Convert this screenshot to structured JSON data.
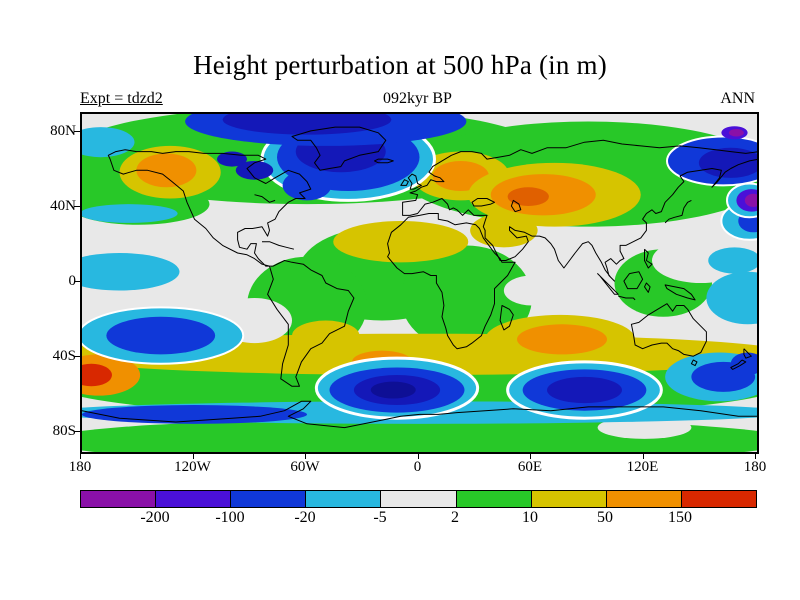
{
  "header": {
    "title": "Height perturbation at 500 hPa (in m)",
    "experiment": "Expt = tdzd2",
    "epoch": "092kyr BP",
    "season": "ANN"
  },
  "chart_data": {
    "type": "heatmap",
    "title": "Height perturbation at 500 hPa (in m)",
    "experiment": "tdzd2",
    "epoch": "092kyr BP",
    "season": "ANN",
    "units": "m",
    "variable": "Height perturbation at 500 hPa",
    "lon_range": [
      -180,
      180
    ],
    "lat_range": [
      -90,
      90
    ],
    "levels": [
      -200,
      -100,
      -20,
      -5,
      2,
      10,
      50,
      150
    ],
    "palette": [
      "#8a10a8",
      "#4a10d8",
      "#1038d8",
      "#28b8e0",
      "#e8e8e8",
      "#28c828",
      "#d6c400",
      "#f09000",
      "#d82800"
    ],
    "base_color": "#e8e8e8",
    "lat_ticks": [
      {
        "label": "80N",
        "value": 80
      },
      {
        "label": "40N",
        "value": 40
      },
      {
        "label": "0",
        "value": 0
      },
      {
        "label": "40S",
        "value": -40
      },
      {
        "label": "80S",
        "value": -80
      }
    ],
    "lon_ticks": [
      {
        "label": "180",
        "value": -180
      },
      {
        "label": "120W",
        "value": -120
      },
      {
        "label": "60W",
        "value": -60
      },
      {
        "label": "0",
        "value": 0
      },
      {
        "label": "60E",
        "value": 60
      },
      {
        "label": "120E",
        "value": 120
      },
      {
        "label": "180",
        "value": 180
      }
    ],
    "features": [
      {
        "lon": -60,
        "lat": 68,
        "rlon": 130,
        "rlat": 26,
        "color": "#28c828"
      },
      {
        "lon": 90,
        "lat": 58,
        "rlon": 100,
        "rlat": 28,
        "color": "#28c828"
      },
      {
        "lon": 0,
        "lat": -84,
        "rlon": 200,
        "rlat": 12,
        "color": "#28c828"
      },
      {
        "lon": 0,
        "lat": -52,
        "rlon": 200,
        "rlat": 20,
        "color": "#28c828"
      },
      {
        "lon": -20,
        "lat": 5,
        "rlon": 45,
        "rlat": 25,
        "color": "#28c828"
      },
      {
        "lon": 25,
        "lat": -8,
        "rlon": 35,
        "rlat": 28,
        "color": "#28c828"
      },
      {
        "lon": -60,
        "lat": -12,
        "rlon": 32,
        "rlat": 26,
        "color": "#28c828"
      },
      {
        "lon": 130,
        "lat": 0,
        "rlon": 26,
        "rlat": 18,
        "color": "#28c828"
      },
      {
        "lon": -150,
        "lat": 42,
        "rlon": 38,
        "rlat": 11,
        "color": "#28c828"
      },
      {
        "lon": -172,
        "lat": 62,
        "rlon": 25,
        "rlat": 18,
        "color": "#28c828"
      },
      {
        "lon": 0,
        "lat": -38,
        "rlon": 200,
        "rlat": 11,
        "color": "#d6c400"
      },
      {
        "lon": -120,
        "lat": 8,
        "rlon": 32,
        "rlat": 16,
        "color": "#e8e8e8"
      },
      {
        "lon": 150,
        "lat": 12,
        "rlon": 26,
        "rlat": 12,
        "color": "#e8e8e8"
      },
      {
        "lon": 165,
        "lat": 25,
        "rlon": 20,
        "rlat": 10,
        "color": "#e8e8e8"
      },
      {
        "lon": -88,
        "lat": -20,
        "rlon": 20,
        "rlat": 12,
        "color": "#e8e8e8"
      },
      {
        "lon": 60,
        "lat": -4,
        "rlon": 15,
        "rlat": 8,
        "color": "#e8e8e8"
      },
      {
        "lon": 120,
        "lat": -77,
        "rlon": 25,
        "rlat": 6,
        "color": "#e8e8e8"
      },
      {
        "lon": -133,
        "lat": 59,
        "rlon": 27,
        "rlat": 14,
        "color": "#d6c400"
      },
      {
        "lon": -135,
        "lat": 60,
        "rlon": 16,
        "rlat": 9,
        "color": "#f09000"
      },
      {
        "lon": 22,
        "lat": 57,
        "rlon": 26,
        "rlat": 13,
        "color": "#d6c400"
      },
      {
        "lon": 22,
        "lat": 57,
        "rlon": 15,
        "rlat": 8,
        "color": "#f09000"
      },
      {
        "lon": 72,
        "lat": 47,
        "rlon": 46,
        "rlat": 17,
        "color": "#d6c400"
      },
      {
        "lon": 66,
        "lat": 47,
        "rlon": 28,
        "rlat": 11,
        "color": "#f09000"
      },
      {
        "lon": 58,
        "lat": 46,
        "rlon": 11,
        "rlat": 5,
        "color": "#e06000"
      },
      {
        "lon": -10,
        "lat": 22,
        "rlon": 36,
        "rlat": 11,
        "color": "#d6c400"
      },
      {
        "lon": 45,
        "lat": 28,
        "rlon": 18,
        "rlat": 9,
        "color": "#d6c400"
      },
      {
        "lon": 75,
        "lat": -30,
        "rlon": 40,
        "rlat": 13,
        "color": "#d6c400"
      },
      {
        "lon": 76,
        "lat": -30,
        "rlon": 24,
        "rlat": 8,
        "color": "#f09000"
      },
      {
        "lon": -50,
        "lat": -28,
        "rlon": 18,
        "rlat": 8,
        "color": "#d6c400"
      },
      {
        "lon": -20,
        "lat": -42,
        "rlon": 16,
        "rlat": 6,
        "color": "#f09000"
      },
      {
        "lon": -171,
        "lat": -49,
        "rlon": 22,
        "rlat": 11,
        "color": "#f09000"
      },
      {
        "lon": -175,
        "lat": -49,
        "rlon": 11,
        "rlat": 6,
        "color": "#d82800"
      },
      {
        "lon": 0,
        "lat": -69,
        "rlon": 200,
        "rlat": 6,
        "color": "#28b8e0"
      },
      {
        "lon": -120,
        "lat": -70,
        "rlon": 60,
        "rlat": 5,
        "color": "#1038d8"
      },
      {
        "lon": -160,
        "lat": 6,
        "rlon": 32,
        "rlat": 10,
        "color": "#28b8e0"
      },
      {
        "lon": -155,
        "lat": 37,
        "rlon": 26,
        "rlat": 5,
        "color": "#28b8e0"
      },
      {
        "lon": 175,
        "lat": -8,
        "rlon": 22,
        "rlat": 14,
        "color": "#28b8e0"
      },
      {
        "lon": -170,
        "lat": 75,
        "rlon": 18,
        "rlat": 8,
        "color": "#28b8e0"
      },
      {
        "lon": 168,
        "lat": 12,
        "rlon": 14,
        "rlat": 7,
        "color": "#28b8e0"
      },
      {
        "lon": 176,
        "lat": 33,
        "rlon": 15,
        "rlat": 10,
        "color": "#28b8e0",
        "halo": 2
      },
      {
        "lon": 178,
        "lat": 33,
        "rlon": 8,
        "rlat": 6,
        "color": "#1038d8"
      },
      {
        "lon": -138,
        "lat": -28,
        "rlon": 44,
        "rlat": 15,
        "color": "#28b8e0",
        "halo": 2
      },
      {
        "lon": -138,
        "lat": -28,
        "rlon": 29,
        "rlat": 10,
        "color": "#1038d8"
      },
      {
        "lon": 160,
        "lat": -50,
        "rlon": 29,
        "rlat": 13,
        "color": "#28b8e0"
      },
      {
        "lon": 162,
        "lat": -50,
        "rlon": 17,
        "rlat": 8,
        "color": "#1038d8"
      },
      {
        "lon": -38,
        "lat": 66,
        "rlon": 46,
        "rlat": 22,
        "color": "#28b8e0",
        "halo": 3
      },
      {
        "lon": -38,
        "lat": 67,
        "rlon": 38,
        "rlat": 18,
        "color": "#1038d8"
      },
      {
        "lon": -42,
        "lat": 70,
        "rlon": 24,
        "rlat": 11,
        "color": "#1418b8"
      },
      {
        "lon": -50,
        "lat": 86,
        "rlon": 75,
        "rlat": 13,
        "color": "#1038d8"
      },
      {
        "lon": -60,
        "lat": 87,
        "rlon": 45,
        "rlat": 8,
        "color": "#1418b8"
      },
      {
        "lon": -60,
        "lat": 52,
        "rlon": 13,
        "rlat": 8,
        "color": "#1038d8"
      },
      {
        "lon": -88,
        "lat": 60,
        "rlon": 10,
        "rlat": 5,
        "color": "#1418b8"
      },
      {
        "lon": -100,
        "lat": 66,
        "rlon": 8,
        "rlat": 4,
        "color": "#1418b8"
      },
      {
        "lon": 162,
        "lat": 65,
        "rlon": 30,
        "rlat": 13,
        "color": "#1038d8",
        "halo": 2
      },
      {
        "lon": 166,
        "lat": 64,
        "rlon": 17,
        "rlat": 8,
        "color": "#1418b8"
      },
      {
        "lon": 176,
        "lat": 44,
        "rlon": 12,
        "rlat": 9,
        "color": "#28b8e0",
        "halo": 2
      },
      {
        "lon": 177,
        "lat": 44,
        "rlon": 8,
        "rlat": 6,
        "color": "#4a10d8"
      },
      {
        "lon": 178,
        "lat": 44,
        "rlon": 4.5,
        "rlat": 3.5,
        "color": "#8a10a8"
      },
      {
        "lon": 168,
        "lat": 80,
        "rlon": 7,
        "rlat": 3.5,
        "color": "#4a10d8"
      },
      {
        "lon": 169,
        "lat": 80,
        "rlon": 4,
        "rlat": 2,
        "color": "#8a10a8"
      },
      {
        "lon": -12,
        "lat": -56,
        "rlon": 43,
        "rlat": 16,
        "color": "#28b8e0",
        "halo": 3
      },
      {
        "lon": -12,
        "lat": -57,
        "rlon": 36,
        "rlat": 12,
        "color": "#1038d8"
      },
      {
        "lon": -12,
        "lat": -57,
        "rlon": 23,
        "rlat": 8,
        "color": "#1418b8"
      },
      {
        "lon": -14,
        "lat": -57,
        "rlon": 12,
        "rlat": 4.5,
        "color": "#0e0f95"
      },
      {
        "lon": 88,
        "lat": -57,
        "rlon": 41,
        "rlat": 15,
        "color": "#28b8e0",
        "halo": 3
      },
      {
        "lon": 88,
        "lat": -57,
        "rlon": 33,
        "rlat": 11,
        "color": "#1038d8"
      },
      {
        "lon": 88,
        "lat": -57,
        "rlon": 20,
        "rlat": 7,
        "color": "#1418b8"
      },
      {
        "lon": 175,
        "lat": -43,
        "rlon": 9,
        "rlat": 6,
        "color": "#1038d8"
      }
    ]
  }
}
